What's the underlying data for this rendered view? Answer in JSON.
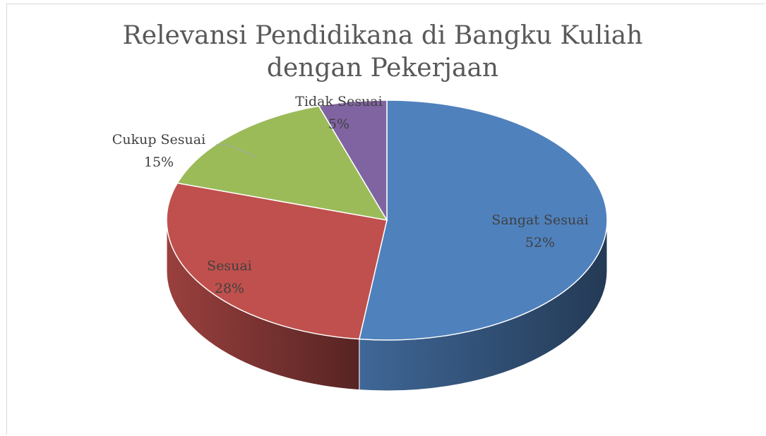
{
  "chart_data": {
    "type": "pie3d",
    "title": "Relevansi Pendidikana di Bangku Kuliah dengan Pekerjaan",
    "categories": [
      "Sangat Sesuai",
      "Sesuai",
      "Cukup Sesuai",
      "Tidak Sesuai"
    ],
    "values": [
      52,
      28,
      15,
      5
    ],
    "value_labels": [
      "52%",
      "28%",
      "15%",
      "5%"
    ],
    "colors": [
      "#4f81bd",
      "#c0504d",
      "#9bbb59",
      "#8064a2"
    ]
  }
}
